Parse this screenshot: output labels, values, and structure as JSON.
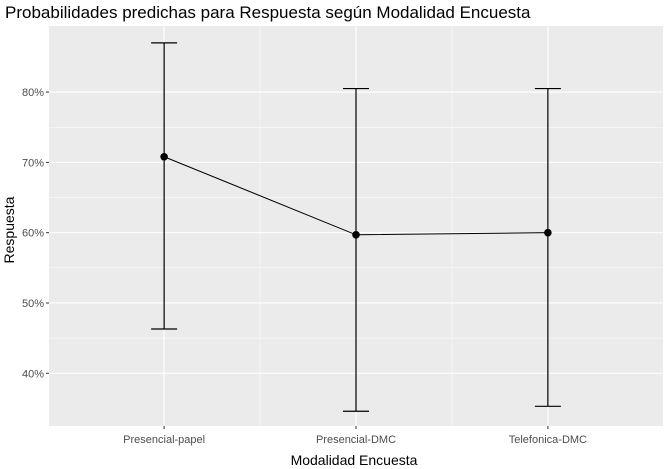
{
  "chart_data": {
    "type": "line",
    "title": "Probabilidades predichas para Respuesta según Modalidad Encuesta",
    "xlabel": "Modalidad Encuesta",
    "ylabel": "Respuesta",
    "categories": [
      "Presencial-papel",
      "Presencial-DMC",
      "Telefonica-DMC"
    ],
    "values": [
      70.8,
      59.7,
      60.0
    ],
    "lower": [
      46.3,
      34.6,
      35.3
    ],
    "upper": [
      87.0,
      80.5,
      80.5
    ],
    "ylim": [
      32.5,
      89.4
    ],
    "yticks": [
      40,
      50,
      60,
      70,
      80
    ],
    "ytick_labels": [
      "40%",
      "50%",
      "60%",
      "70%",
      "80%"
    ],
    "grid": true,
    "colors": {
      "panel": "#ebebeb",
      "grid": "#ffffff",
      "line": "#000000",
      "tick_text": "#4d4d4d"
    }
  }
}
